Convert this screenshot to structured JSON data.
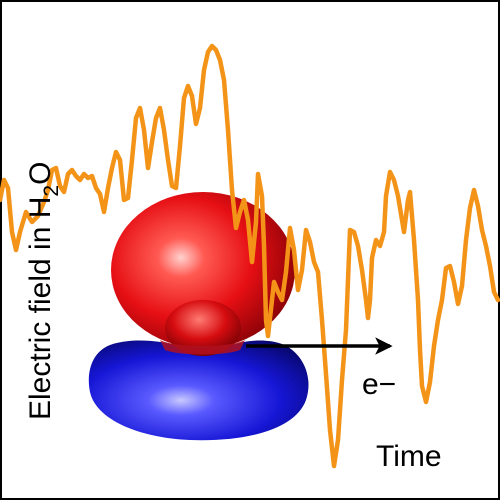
{
  "ylabel": {
    "main": "Electric field in H",
    "sub": "2",
    "end": "O"
  },
  "xlabel": "Time",
  "electron_label": "e−",
  "colors": {
    "trace": "#f39419",
    "lobe_top": "#e60f14",
    "lobe_bottom": "#1414d2",
    "arrow": "#000000",
    "frame": "#000000"
  }
}
